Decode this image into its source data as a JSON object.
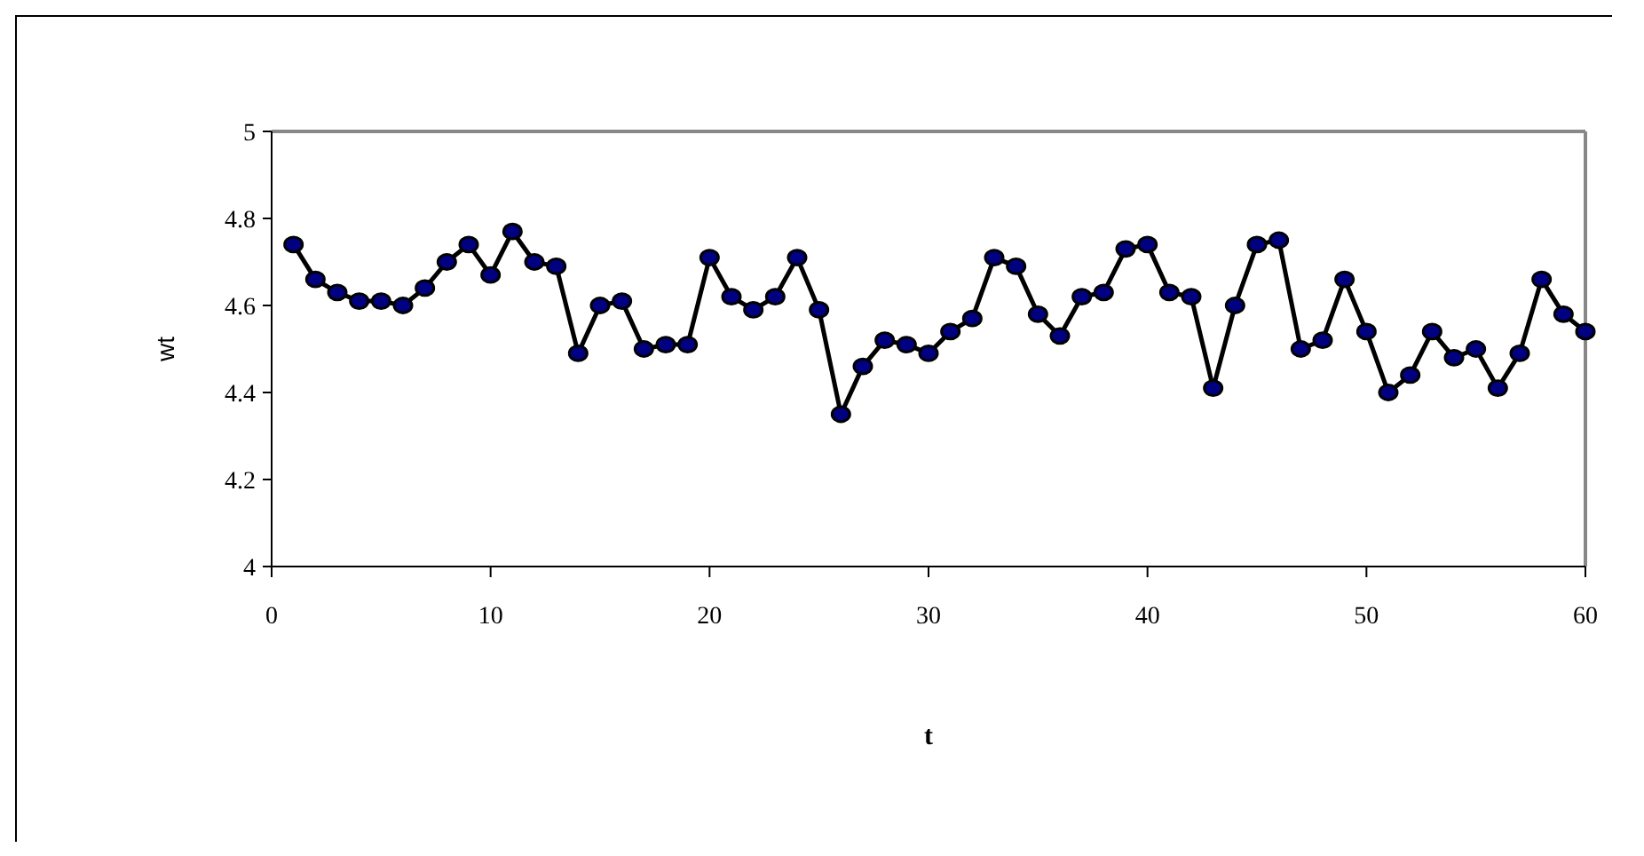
{
  "chart_data": {
    "type": "line",
    "xlabel": "t",
    "ylabel": "wt",
    "x": [
      1,
      2,
      3,
      4,
      5,
      6,
      7,
      8,
      9,
      10,
      11,
      12,
      13,
      14,
      15,
      16,
      17,
      18,
      19,
      20,
      21,
      22,
      23,
      24,
      25,
      26,
      27,
      28,
      29,
      30,
      31,
      32,
      33,
      34,
      35,
      36,
      37,
      38,
      39,
      40,
      41,
      42,
      43,
      44,
      45,
      46,
      47,
      48,
      49,
      50,
      51,
      52,
      53,
      54,
      55,
      56,
      57,
      58,
      59,
      60
    ],
    "series": [
      {
        "color": "#000080",
        "values": [
          4.74,
          4.66,
          4.63,
          4.61,
          4.61,
          4.6,
          4.64,
          4.7,
          4.74,
          4.67,
          4.77,
          4.7,
          4.69,
          4.49,
          4.6,
          4.61,
          4.5,
          4.51,
          4.51,
          4.71,
          4.62,
          4.59,
          4.62,
          4.71,
          4.59,
          4.35,
          4.46,
          4.52,
          4.51,
          4.49,
          4.54,
          4.57,
          4.71,
          4.69,
          4.58,
          4.53,
          4.62,
          4.63,
          4.73,
          4.74,
          4.63,
          4.62,
          4.41,
          4.6,
          4.74,
          4.75,
          4.5,
          4.52,
          4.66,
          4.54,
          4.4,
          4.44,
          4.54,
          4.48,
          4.5,
          4.41,
          4.49,
          4.66,
          4.58,
          4.54
        ]
      }
    ],
    "xlim": [
      0,
      60
    ],
    "xticks": [
      0,
      10,
      20,
      30,
      40,
      50,
      60
    ],
    "ylim": [
      4,
      5
    ],
    "yticks": [
      4,
      4.2,
      4.4,
      4.6,
      4.8,
      5
    ],
    "grid": false,
    "marker": "circle",
    "line_style": "solid"
  }
}
